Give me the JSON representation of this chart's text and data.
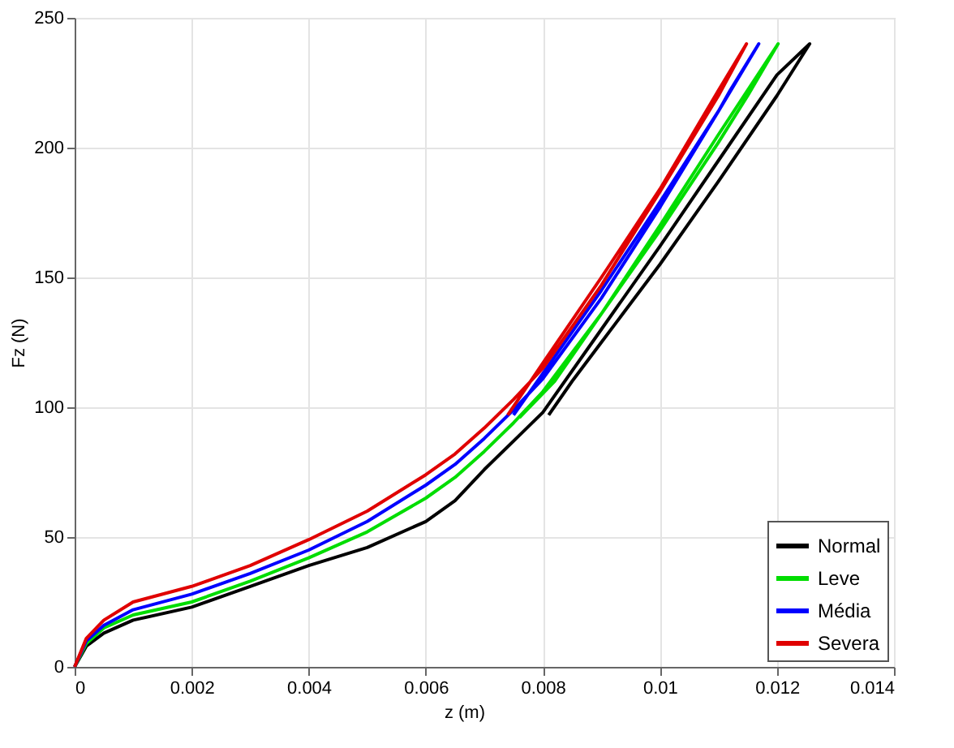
{
  "chart_data": {
    "type": "line",
    "xlabel": "z (m)",
    "ylabel": "Fz (N)",
    "xlim": [
      0,
      0.014
    ],
    "ylim": [
      0,
      250
    ],
    "xticks": [
      0,
      0.002,
      0.004,
      0.006,
      0.008,
      0.01,
      0.012,
      0.014
    ],
    "yticks": [
      0,
      50,
      100,
      150,
      200,
      250
    ],
    "grid": true,
    "legend": "bottom right",
    "line_style": "solid",
    "marker": "none",
    "series": [
      {
        "name": "Normal",
        "color": "#000000",
        "x": [
          0,
          0.0002,
          0.0005,
          0.001,
          0.002,
          0.003,
          0.004,
          0.005,
          0.006,
          0.0065,
          0.007,
          0.0075,
          0.008,
          0.009,
          0.01,
          0.011,
          0.012,
          0.01256,
          0.012,
          0.011,
          0.01,
          0.009,
          0.0085,
          0.0081
        ],
        "values": [
          0,
          8,
          13,
          18,
          23,
          31,
          39,
          46,
          56,
          64,
          76,
          87,
          98,
          130,
          162,
          195,
          228,
          240,
          220,
          187,
          155,
          125,
          110,
          97
        ]
      },
      {
        "name": "Leve",
        "color": "#00dd00",
        "x": [
          0,
          0.0002,
          0.0005,
          0.001,
          0.002,
          0.003,
          0.004,
          0.005,
          0.006,
          0.0065,
          0.007,
          0.0075,
          0.008,
          0.009,
          0.01,
          0.011,
          0.01202,
          0.0115,
          0.011,
          0.01,
          0.009,
          0.0082,
          0.0076
        ],
        "values": [
          0,
          9,
          15,
          20,
          25,
          33,
          42,
          52,
          65,
          73,
          83,
          94,
          106,
          136,
          170,
          205,
          240,
          220,
          202,
          168,
          136,
          110,
          96
        ]
      },
      {
        "name": "Média",
        "color": "#0000ff",
        "x": [
          0,
          0.0002,
          0.0005,
          0.001,
          0.002,
          0.003,
          0.004,
          0.005,
          0.006,
          0.0065,
          0.007,
          0.0075,
          0.008,
          0.009,
          0.01,
          0.011,
          0.01169,
          0.0112,
          0.011,
          0.01,
          0.009,
          0.008,
          0.0075
        ],
        "values": [
          0,
          10,
          16,
          22,
          28,
          36,
          45,
          56,
          70,
          78,
          88,
          99,
          111,
          142,
          177,
          214,
          240,
          222,
          214,
          179,
          145,
          113,
          97
        ]
      },
      {
        "name": "Severa",
        "color": "#e00000",
        "x": [
          0,
          0.0002,
          0.0005,
          0.001,
          0.002,
          0.003,
          0.004,
          0.005,
          0.006,
          0.0065,
          0.007,
          0.0075,
          0.008,
          0.009,
          0.01,
          0.011,
          0.01148,
          0.011,
          0.0105,
          0.01,
          0.009,
          0.008,
          0.0074
        ],
        "values": [
          0,
          11,
          18,
          25,
          31,
          39,
          49,
          60,
          74,
          82,
          92,
          103,
          115,
          147,
          183,
          220,
          240,
          222,
          203,
          184,
          150,
          117,
          97
        ]
      }
    ]
  }
}
